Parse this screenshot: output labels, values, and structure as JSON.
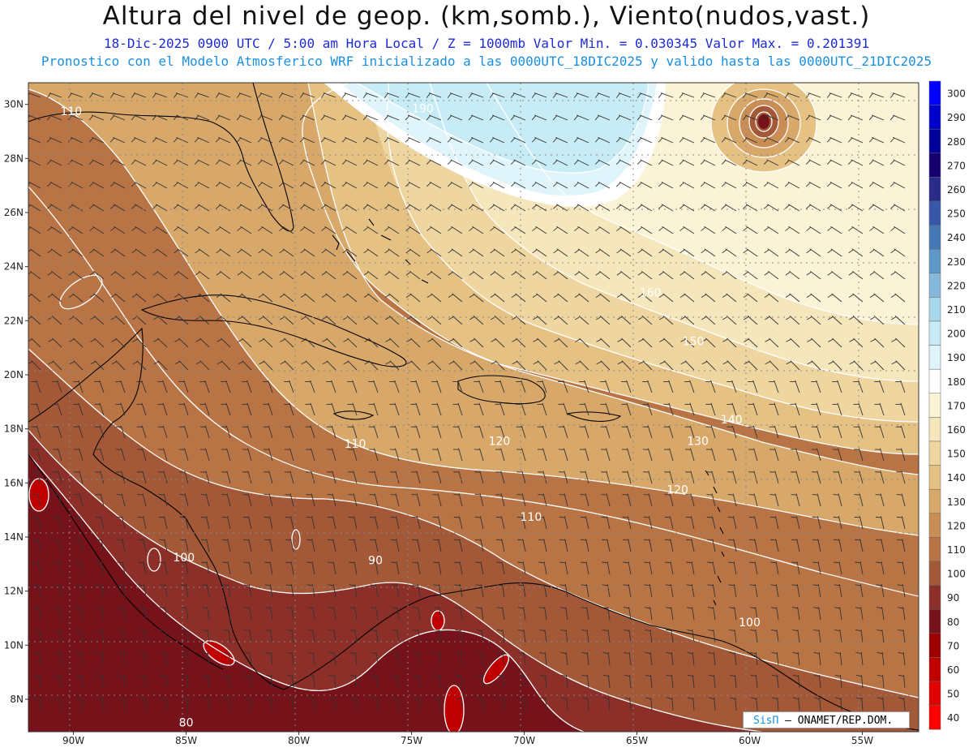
{
  "header": {
    "title": "Altura del nivel de geop. (km,somb.), Viento(nudos,vast.)",
    "subtitle1": "18-Dic-2025  0900 UTC / 5:00 am Hora Local / Z = 1000mb  Valor Min. = 0.030345  Valor Max. = 0.201391",
    "subtitle2": "Pronostico con el Modelo Atmosferico WRF inicializado a las 0000UTC_18DIC2025 y valido hasta las  0000UTC_21DIC2025"
  },
  "axes": {
    "lat_labels": [
      "30N",
      "28N",
      "26N",
      "24N",
      "22N",
      "20N",
      "18N",
      "16N",
      "14N",
      "12N",
      "10N",
      "8N"
    ],
    "lon_labels": [
      "90W",
      "85W",
      "80W",
      "75W",
      "70W",
      "65W",
      "60W",
      "55W"
    ]
  },
  "colorbar": {
    "labels": [
      "300",
      "290",
      "280",
      "270",
      "260",
      "250",
      "240",
      "230",
      "220",
      "210",
      "200",
      "190",
      "180",
      "170",
      "160",
      "150",
      "140",
      "130",
      "120",
      "110",
      "100",
      "90",
      "80",
      "70",
      "60",
      "50",
      "40"
    ],
    "colors": [
      "#0000ff",
      "#0000cc",
      "#00009a",
      "#160070",
      "#2b2b8c",
      "#3758a8",
      "#4678b8",
      "#5e98c8",
      "#86b8dc",
      "#a8d8ec",
      "#c8ecf6",
      "#e0f4fb",
      "#ffffff",
      "#fbf3d6",
      "#f5e6bb",
      "#efd6a0",
      "#e5c184",
      "#d8a86a",
      "#c88e55",
      "#b97445",
      "#a35838",
      "#8c2f28",
      "#76121a",
      "#9e0000",
      "#c00000",
      "#e00000",
      "#ff0000"
    ]
  },
  "contour_labels": [
    {
      "text": "110",
      "lon": -90.1,
      "lat": 29.6
    },
    {
      "text": "190",
      "lon": -74.5,
      "lat": 29.7
    },
    {
      "text": "160",
      "lon": -64.4,
      "lat": 22.9
    },
    {
      "text": "150",
      "lon": -62.5,
      "lat": 21.1
    },
    {
      "text": "140",
      "lon": -60.8,
      "lat": 18.2
    },
    {
      "text": "130",
      "lon": -62.3,
      "lat": 17.4
    },
    {
      "text": "120",
      "lon": -71.1,
      "lat": 17.4
    },
    {
      "text": "110",
      "lon": -77.5,
      "lat": 17.3
    },
    {
      "text": "120",
      "lon": -63.2,
      "lat": 15.6
    },
    {
      "text": "110",
      "lon": -69.7,
      "lat": 14.6
    },
    {
      "text": "100",
      "lon": -85.1,
      "lat": 13.1
    },
    {
      "text": "90",
      "lon": -76.6,
      "lat": 13.0
    },
    {
      "text": "100",
      "lon": -60.0,
      "lat": 10.7
    },
    {
      "text": "80",
      "lon": -85.0,
      "lat": 7.0
    }
  ],
  "credit": {
    "logo": "SisΠ",
    "text": " – ONAMET/REP.DOM."
  }
}
